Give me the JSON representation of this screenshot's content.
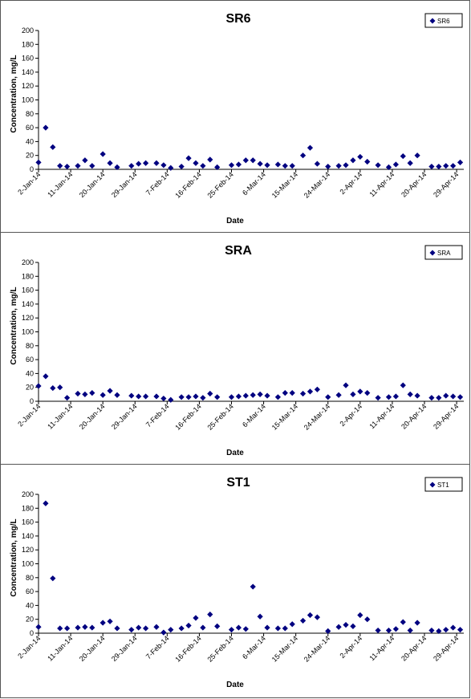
{
  "colors": {
    "marker": "#000080",
    "axis": "#000000",
    "panel_border": "#555555"
  },
  "chart_data": [
    {
      "type": "scatter",
      "title": "SR6",
      "xlabel": "Date",
      "ylabel": "Concentration, mg/L",
      "ylim": [
        0,
        200
      ],
      "yticks": [
        0,
        20,
        40,
        60,
        80,
        100,
        120,
        140,
        160,
        180,
        200
      ],
      "xlim": [
        "2014-01-02",
        "2014-05-01"
      ],
      "xtick_labels": [
        "2-Jan-14",
        "11-Jan-14",
        "20-Jan-14",
        "29-Jan-14",
        "7-Feb-14",
        "16-Feb-14",
        "25-Feb-14",
        "6-Mar-14",
        "15-Mar-14",
        "24-Mar-14",
        "2-Apr-14",
        "11-Apr-14",
        "20-Apr-14",
        "29-Apr-14"
      ],
      "legend": "top-right",
      "series": [
        {
          "name": "SR6",
          "points": [
            [
              "2014-01-02",
              10
            ],
            [
              "2014-01-04",
              60
            ],
            [
              "2014-01-06",
              32
            ],
            [
              "2014-01-08",
              5
            ],
            [
              "2014-01-10",
              4
            ],
            [
              "2014-01-13",
              5
            ],
            [
              "2014-01-15",
              13
            ],
            [
              "2014-01-17",
              5
            ],
            [
              "2014-01-20",
              22
            ],
            [
              "2014-01-22",
              9
            ],
            [
              "2014-01-24",
              3
            ],
            [
              "2014-01-28",
              5
            ],
            [
              "2014-01-30",
              8
            ],
            [
              "2014-02-01",
              9
            ],
            [
              "2014-02-04",
              9
            ],
            [
              "2014-02-06",
              6
            ],
            [
              "2014-02-08",
              2
            ],
            [
              "2014-02-11",
              4
            ],
            [
              "2014-02-13",
              16
            ],
            [
              "2014-02-15",
              9
            ],
            [
              "2014-02-17",
              5
            ],
            [
              "2014-02-19",
              14
            ],
            [
              "2014-02-21",
              3
            ],
            [
              "2014-02-25",
              6
            ],
            [
              "2014-02-27",
              7
            ],
            [
              "2014-03-01",
              13
            ],
            [
              "2014-03-03",
              13
            ],
            [
              "2014-03-05",
              8
            ],
            [
              "2014-03-07",
              6
            ],
            [
              "2014-03-10",
              7
            ],
            [
              "2014-03-12",
              5
            ],
            [
              "2014-03-14",
              5
            ],
            [
              "2014-03-17",
              20
            ],
            [
              "2014-03-19",
              31
            ],
            [
              "2014-03-21",
              8
            ],
            [
              "2014-03-24",
              4
            ],
            [
              "2014-03-27",
              5
            ],
            [
              "2014-03-29",
              6
            ],
            [
              "2014-03-31",
              13
            ],
            [
              "2014-04-02",
              18
            ],
            [
              "2014-04-04",
              11
            ],
            [
              "2014-04-07",
              6
            ],
            [
              "2014-04-10",
              3
            ],
            [
              "2014-04-12",
              7
            ],
            [
              "2014-04-14",
              19
            ],
            [
              "2014-04-16",
              9
            ],
            [
              "2014-04-18",
              20
            ],
            [
              "2014-04-22",
              4
            ],
            [
              "2014-04-24",
              4
            ],
            [
              "2014-04-26",
              5
            ],
            [
              "2014-04-28",
              5
            ],
            [
              "2014-04-30",
              10
            ]
          ]
        }
      ]
    },
    {
      "type": "scatter",
      "title": "SRA",
      "xlabel": "Date",
      "ylabel": "Concentration, mg/L",
      "ylim": [
        0,
        200
      ],
      "yticks": [
        0,
        20,
        40,
        60,
        80,
        100,
        120,
        140,
        160,
        180,
        200
      ],
      "xlim": [
        "2014-01-02",
        "2014-05-01"
      ],
      "xtick_labels": [
        "2-Jan-14",
        "11-Jan-14",
        "20-Jan-14",
        "29-Jan-14",
        "7-Feb-14",
        "16-Feb-14",
        "25-Feb-14",
        "6-Mar-14",
        "15-Mar-14",
        "24-Mar-14",
        "2-Apr-14",
        "11-Apr-14",
        "20-Apr-14",
        "29-Apr-14"
      ],
      "legend": "top-right",
      "series": [
        {
          "name": "SRA",
          "points": [
            [
              "2014-01-02",
              22
            ],
            [
              "2014-01-04",
              36
            ],
            [
              "2014-01-06",
              19
            ],
            [
              "2014-01-08",
              20
            ],
            [
              "2014-01-10",
              5
            ],
            [
              "2014-01-13",
              11
            ],
            [
              "2014-01-15",
              10
            ],
            [
              "2014-01-17",
              12
            ],
            [
              "2014-01-20",
              9
            ],
            [
              "2014-01-22",
              15
            ],
            [
              "2014-01-24",
              9
            ],
            [
              "2014-01-28",
              8
            ],
            [
              "2014-01-30",
              7
            ],
            [
              "2014-02-01",
              7
            ],
            [
              "2014-02-04",
              7
            ],
            [
              "2014-02-06",
              4
            ],
            [
              "2014-02-08",
              2
            ],
            [
              "2014-02-11",
              6
            ],
            [
              "2014-02-13",
              6
            ],
            [
              "2014-02-15",
              7
            ],
            [
              "2014-02-17",
              5
            ],
            [
              "2014-02-19",
              11
            ],
            [
              "2014-02-21",
              6
            ],
            [
              "2014-02-25",
              6
            ],
            [
              "2014-02-27",
              7
            ],
            [
              "2014-03-01",
              8
            ],
            [
              "2014-03-03",
              9
            ],
            [
              "2014-03-05",
              10
            ],
            [
              "2014-03-07",
              8
            ],
            [
              "2014-03-10",
              6
            ],
            [
              "2014-03-12",
              12
            ],
            [
              "2014-03-14",
              12
            ],
            [
              "2014-03-17",
              11
            ],
            [
              "2014-03-19",
              14
            ],
            [
              "2014-03-21",
              17
            ],
            [
              "2014-03-24",
              6
            ],
            [
              "2014-03-27",
              9
            ],
            [
              "2014-03-29",
              23
            ],
            [
              "2014-03-31",
              10
            ],
            [
              "2014-04-02",
              14
            ],
            [
              "2014-04-04",
              12
            ],
            [
              "2014-04-07",
              5
            ],
            [
              "2014-04-10",
              6
            ],
            [
              "2014-04-12",
              7
            ],
            [
              "2014-04-14",
              23
            ],
            [
              "2014-04-16",
              10
            ],
            [
              "2014-04-18",
              8
            ],
            [
              "2014-04-22",
              5
            ],
            [
              "2014-04-24",
              5
            ],
            [
              "2014-04-26",
              8
            ],
            [
              "2014-04-28",
              7
            ],
            [
              "2014-04-30",
              6
            ]
          ]
        }
      ]
    },
    {
      "type": "scatter",
      "title": "ST1",
      "xlabel": "Date",
      "ylabel": "Concentration, mg/L",
      "ylim": [
        0,
        200
      ],
      "yticks": [
        0,
        20,
        40,
        60,
        80,
        100,
        120,
        140,
        160,
        180,
        200
      ],
      "xlim": [
        "2014-01-02",
        "2014-05-01"
      ],
      "xtick_labels": [
        "2-Jan-14",
        "11-Jan-14",
        "20-Jan-14",
        "29-Jan-14",
        "7-Feb-14",
        "16-Feb-14",
        "25-Feb-14",
        "6-Mar-14",
        "15-Mar-14",
        "24-Mar-14",
        "2-Apr-14",
        "11-Apr-14",
        "20-Apr-14",
        "29-Apr-14"
      ],
      "legend": "top-right",
      "series": [
        {
          "name": "ST1",
          "points": [
            [
              "2014-01-02",
              9
            ],
            [
              "2014-01-04",
              187
            ],
            [
              "2014-01-06",
              79
            ],
            [
              "2014-01-08",
              7
            ],
            [
              "2014-01-10",
              7
            ],
            [
              "2014-01-13",
              8
            ],
            [
              "2014-01-15",
              9
            ],
            [
              "2014-01-17",
              8
            ],
            [
              "2014-01-20",
              15
            ],
            [
              "2014-01-22",
              17
            ],
            [
              "2014-01-24",
              7
            ],
            [
              "2014-01-28",
              5
            ],
            [
              "2014-01-30",
              8
            ],
            [
              "2014-02-01",
              7
            ],
            [
              "2014-02-04",
              9
            ],
            [
              "2014-02-06",
              1
            ],
            [
              "2014-02-08",
              5
            ],
            [
              "2014-02-11",
              7
            ],
            [
              "2014-02-13",
              11
            ],
            [
              "2014-02-15",
              22
            ],
            [
              "2014-02-17",
              8
            ],
            [
              "2014-02-19",
              27
            ],
            [
              "2014-02-21",
              10
            ],
            [
              "2014-02-25",
              5
            ],
            [
              "2014-02-27",
              8
            ],
            [
              "2014-03-01",
              6
            ],
            [
              "2014-03-03",
              67
            ],
            [
              "2014-03-05",
              24
            ],
            [
              "2014-03-07",
              8
            ],
            [
              "2014-03-10",
              7
            ],
            [
              "2014-03-12",
              7
            ],
            [
              "2014-03-14",
              13
            ],
            [
              "2014-03-17",
              18
            ],
            [
              "2014-03-19",
              26
            ],
            [
              "2014-03-21",
              23
            ],
            [
              "2014-03-24",
              3
            ],
            [
              "2014-03-27",
              9
            ],
            [
              "2014-03-29",
              12
            ],
            [
              "2014-03-31",
              10
            ],
            [
              "2014-04-02",
              26
            ],
            [
              "2014-04-04",
              20
            ],
            [
              "2014-04-07",
              4
            ],
            [
              "2014-04-10",
              4
            ],
            [
              "2014-04-12",
              6
            ],
            [
              "2014-04-14",
              16
            ],
            [
              "2014-04-16",
              4
            ],
            [
              "2014-04-18",
              15
            ],
            [
              "2014-04-22",
              4
            ],
            [
              "2014-04-24",
              3
            ],
            [
              "2014-04-26",
              5
            ],
            [
              "2014-04-28",
              8
            ],
            [
              "2014-04-30",
              5
            ]
          ]
        }
      ]
    }
  ]
}
